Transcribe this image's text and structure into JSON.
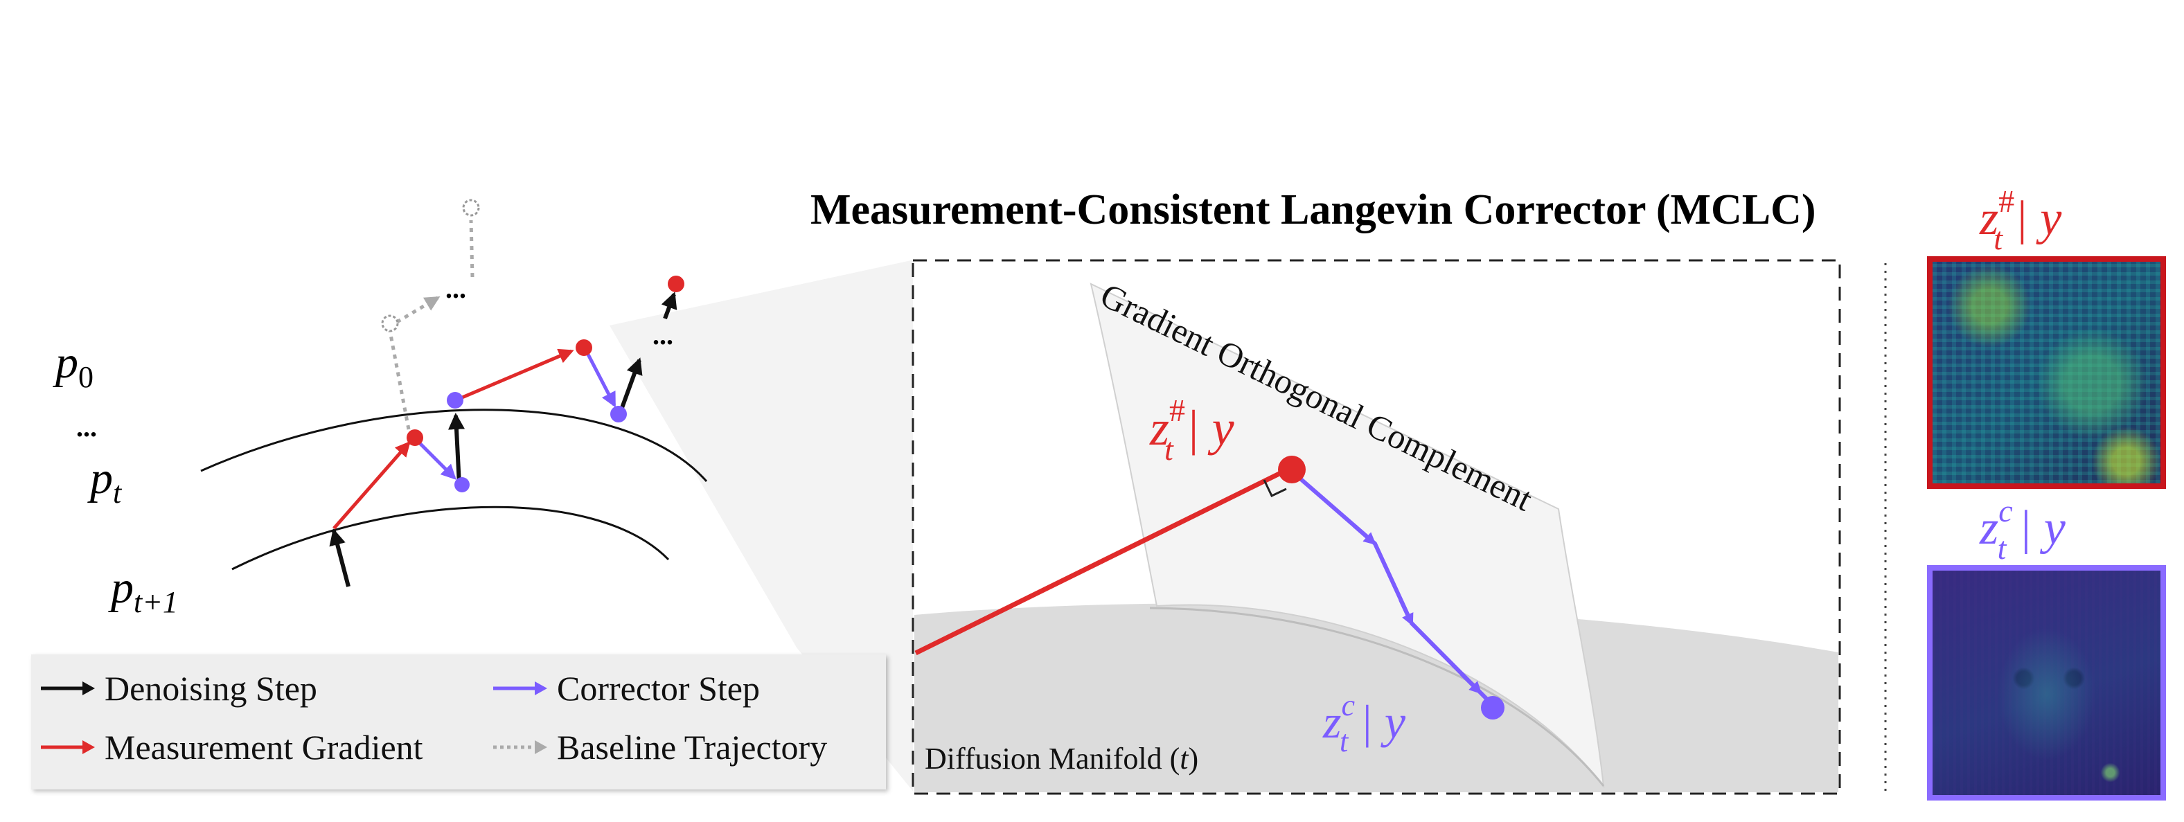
{
  "title": "Measurement-Consistent Langevin Corrector (MCLC)",
  "left_panel": {
    "p0": "p",
    "p0_sub": "0",
    "dots": "...",
    "pt": "p",
    "pt_sub": "t",
    "pt1": "p",
    "pt1_sub": "t+1",
    "ellipsis_top": "...",
    "ellipsis_right": "..."
  },
  "legend": {
    "items": [
      {
        "label": "Denoising Step",
        "color": "#111111",
        "style": "solid"
      },
      {
        "label": "Corrector Step",
        "color": "#7b5cff",
        "style": "solid"
      },
      {
        "label": "Measurement Gradient",
        "color": "#e02a2a",
        "style": "solid"
      },
      {
        "label": "Baseline Trajectory",
        "color": "#aaaaaa",
        "style": "dotted"
      }
    ]
  },
  "center_panel": {
    "plane_label": "Gradient Orthogonal Complement",
    "manifold_label": "Diffusion Manifold (",
    "manifold_var": "t",
    "manifold_close": ")",
    "z_hash_label": "z",
    "z_hash_sup": "#",
    "z_hash_sub": "t",
    "z_hash_given": " | y",
    "z_c_label": "z",
    "z_c_sup": "c",
    "z_c_sub": "t",
    "z_c_given": " | y"
  },
  "right_panel": {
    "top_label_z": "z",
    "top_label_sup": "#",
    "top_label_sub": "t",
    "top_label_given": " | y",
    "bottom_label_z": "z",
    "bottom_label_sup": "c",
    "bottom_label_sub": "t",
    "bottom_label_given": " | y"
  },
  "colors": {
    "measurement": "#e02a2a",
    "corrector": "#7b5cff",
    "denoise": "#111111",
    "baseline": "#aaaaaa",
    "manifold_fill": "#dcdcdc"
  }
}
